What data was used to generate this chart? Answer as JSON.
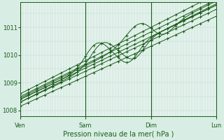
{
  "title": "",
  "xlabel": "Pression niveau de la mer( hPa )",
  "bg_color": "#d8ede4",
  "plot_bg_color": "#e4f2ec",
  "grid_color": "#b8d8cc",
  "line_color": "#1a5c1a",
  "ylim": [
    1007.8,
    1011.9
  ],
  "xlim": [
    0,
    72
  ],
  "yticks": [
    1008,
    1009,
    1010,
    1011
  ],
  "xtick_labels": [
    "Ven",
    "Sam",
    "Dim",
    "Lun"
  ],
  "xtick_positions": [
    0,
    24,
    48,
    72
  ]
}
